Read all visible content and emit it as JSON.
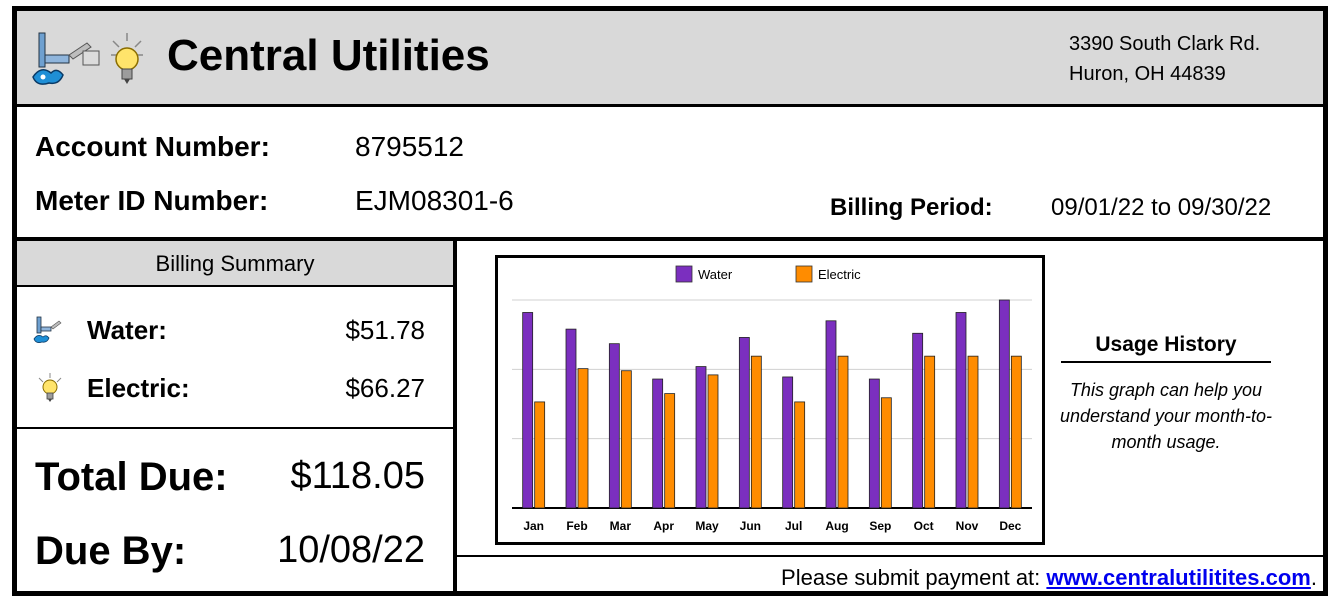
{
  "header": {
    "company": "Central Utilities",
    "address_line1": "3390 South Clark Rd.",
    "address_line2": "Huron, OH 44839"
  },
  "account": {
    "account_label": "Account Number:",
    "account_value": "8795512",
    "meter_label": "Meter ID Number:",
    "meter_value": "EJM08301-6",
    "period_label": "Billing Period:",
    "period_value": "09/01/22 to 09/30/22"
  },
  "summary": {
    "title": "Billing Summary",
    "water_label": "Water:",
    "water_value": "$51.78",
    "electric_label": "Electric:",
    "electric_value": "$66.27",
    "total_label": "Total Due:",
    "total_value": "$118.05",
    "due_label": "Due By:",
    "due_value": "10/08/22"
  },
  "usage": {
    "title": "Usage History",
    "description": "This graph can help you understand your month-to-month usage."
  },
  "payment": {
    "text": "Please submit payment at:",
    "link": "www.centralutilitites.com",
    "period": "."
  },
  "colors": {
    "water": "#7b2fbf",
    "electric": "#ff8c00"
  },
  "chart_data": {
    "type": "bar",
    "categories": [
      "Jan",
      "Feb",
      "Mar",
      "Apr",
      "May",
      "Jun",
      "Jul",
      "Aug",
      "Sep",
      "Oct",
      "Nov",
      "Dec"
    ],
    "series": [
      {
        "name": "Water",
        "values": [
          94,
          86,
          79,
          62,
          68,
          82,
          63,
          90,
          62,
          84,
          94,
          100
        ]
      },
      {
        "name": "Electric",
        "values": [
          51,
          67,
          66,
          55,
          64,
          73,
          51,
          73,
          53,
          73,
          73,
          73
        ]
      }
    ],
    "ylim": [
      0,
      100
    ],
    "grid": true,
    "legend": "top-center"
  }
}
